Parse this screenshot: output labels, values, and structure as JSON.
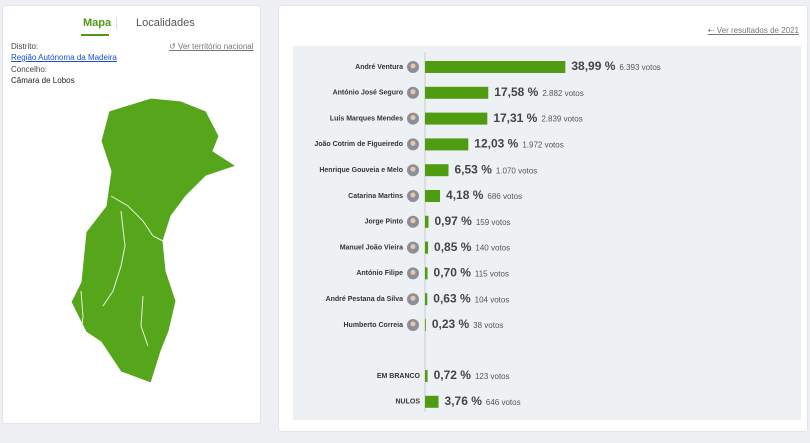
{
  "tabs": [
    "Mapa",
    "Localidades"
  ],
  "location": {
    "district_label": "Distrito:",
    "district": "Região Autónoma da Madeira",
    "municipality_label": "Concelho:",
    "municipality": "Câmara de Lobos",
    "national_link": "Ver território nacional"
  },
  "previous_link": "Ver resultados de 2021",
  "chart_data": [
    {
      "type": "bar",
      "color": "#4f9b12",
      "categories": [
        "André Ventura",
        "António José Seguro",
        "Luís Marques Mendes",
        "João Cotrim de Figueiredo",
        "Henrique Gouveia e Melo",
        "Catarina Martins",
        "Jorge Pinto",
        "Manuel João Vieira",
        "António Filipe",
        "André Pestana da Silva",
        "Humberto Correia"
      ],
      "values": [
        38.99,
        17.58,
        17.31,
        12.03,
        6.53,
        4.18,
        0.97,
        0.85,
        0.7,
        0.63,
        0.23
      ],
      "value_labels": [
        "38,99 %",
        "17,58 %",
        "17,31 %",
        "12,03 %",
        "6,53 %",
        "4,18 %",
        "0,97 %",
        "0,85 %",
        "0,70 %",
        "0,63 %",
        "0,23 %"
      ],
      "vote_labels": [
        "6.393 votos",
        "2.882 votos",
        "2.839 votos",
        "1.972 votos",
        "1.070 votos",
        "686 votos",
        "159 votos",
        "140 votos",
        "115 votos",
        "104 votos",
        "38 votos"
      ]
    },
    {
      "type": "bar",
      "color": "#4f9b12",
      "categories": [
        "EM BRANCO",
        "NULOS"
      ],
      "values": [
        0.72,
        3.76
      ],
      "value_labels": [
        "0,72 %",
        "3,76 %"
      ],
      "vote_labels": [
        "123 votos",
        "646 votos"
      ]
    }
  ]
}
